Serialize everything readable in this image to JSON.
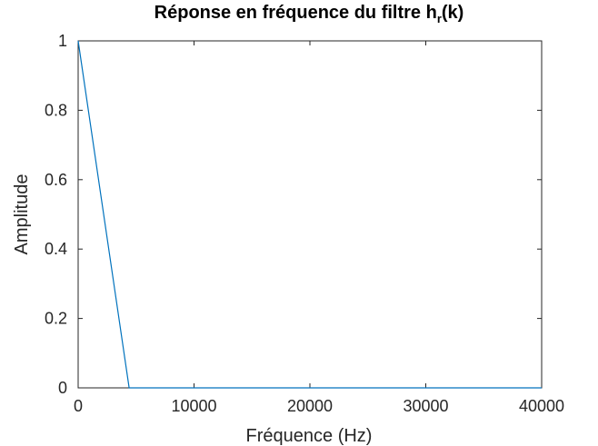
{
  "chart_data": {
    "type": "line",
    "title": "Réponse en fréquence du filtre h",
    "title_subscript": "r",
    "title_suffix": "(k)",
    "xlabel": "Fréquence (Hz)",
    "ylabel": "Amplitude",
    "xlim": [
      0,
      40000
    ],
    "ylim": [
      0,
      1
    ],
    "xticks": [
      0,
      10000,
      20000,
      30000,
      40000
    ],
    "xtick_labels": [
      "0",
      "10000",
      "20000",
      "30000",
      "40000"
    ],
    "yticks": [
      0,
      0.2,
      0.4,
      0.6,
      0.8,
      1
    ],
    "ytick_labels": [
      "0",
      "0.2",
      "0.4",
      "0.6",
      "0.8",
      "1"
    ],
    "grid": false,
    "series": [
      {
        "color": "#0072bd",
        "x": [
          0,
          4400,
          40000
        ],
        "y": [
          1,
          0,
          0
        ]
      }
    ]
  }
}
